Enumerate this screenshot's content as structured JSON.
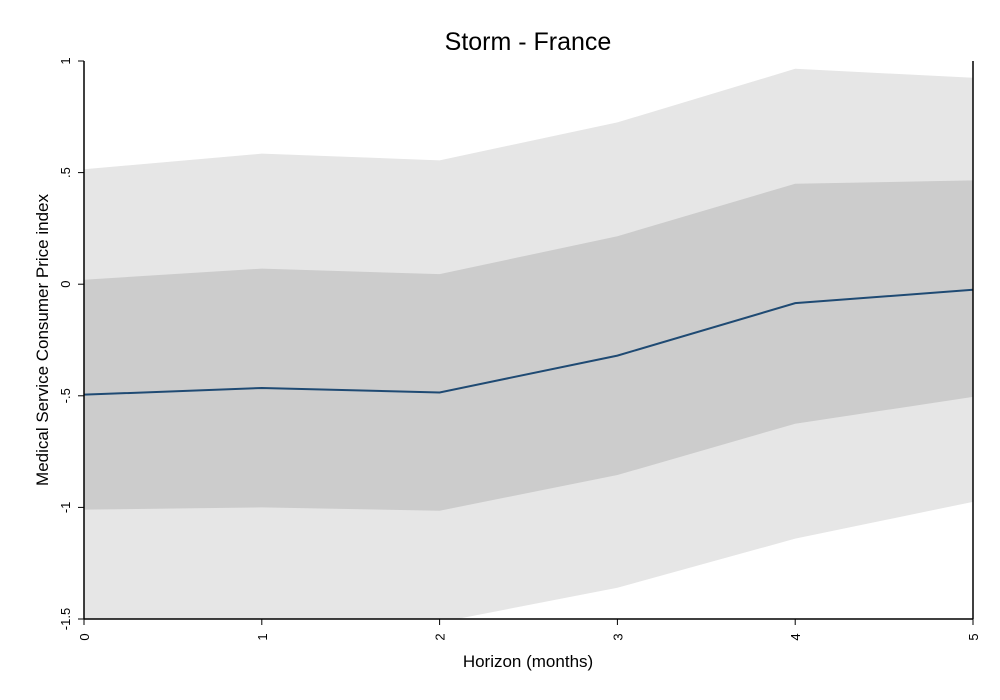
{
  "chart_data": {
    "type": "area",
    "title": "Storm - France",
    "xlabel": "Horizon (months)",
    "ylabel": "Medical Service Consumer Price index",
    "x": [
      0,
      1,
      2,
      3,
      4,
      5
    ],
    "xlim": [
      0,
      5
    ],
    "ylim": [
      -1.5,
      1
    ],
    "xticks": [
      0,
      1,
      2,
      3,
      4,
      5
    ],
    "yticks": [
      -1.5,
      -1,
      -0.5,
      0,
      0.5,
      1
    ],
    "xtick_labels": [
      "0",
      "1",
      "2",
      "3",
      "4",
      "5"
    ],
    "ytick_labels": [
      "-1.5",
      "-1",
      "-.5",
      "0",
      ".5",
      "1"
    ],
    "grid": false,
    "series": [
      {
        "values": [
          -0.495,
          -0.465,
          -0.485,
          -0.32,
          -0.085,
          -0.025
        ]
      }
    ],
    "bands": [
      {
        "lower": [
          -1.51,
          -1.51,
          -1.515,
          -1.36,
          -1.14,
          -0.975
        ],
        "upper": [
          0.515,
          0.585,
          0.555,
          0.725,
          0.965,
          0.925
        ]
      },
      {
        "lower": [
          -1.01,
          -1.0,
          -1.015,
          -0.855,
          -0.625,
          -0.505
        ],
        "upper": [
          0.02,
          0.07,
          0.045,
          0.215,
          0.45,
          0.465
        ]
      }
    ],
    "colors": {
      "outer_band": "#e6e6e6",
      "inner_band": "#cccccc",
      "line": "#1f4a73",
      "axis": "#000000"
    }
  }
}
